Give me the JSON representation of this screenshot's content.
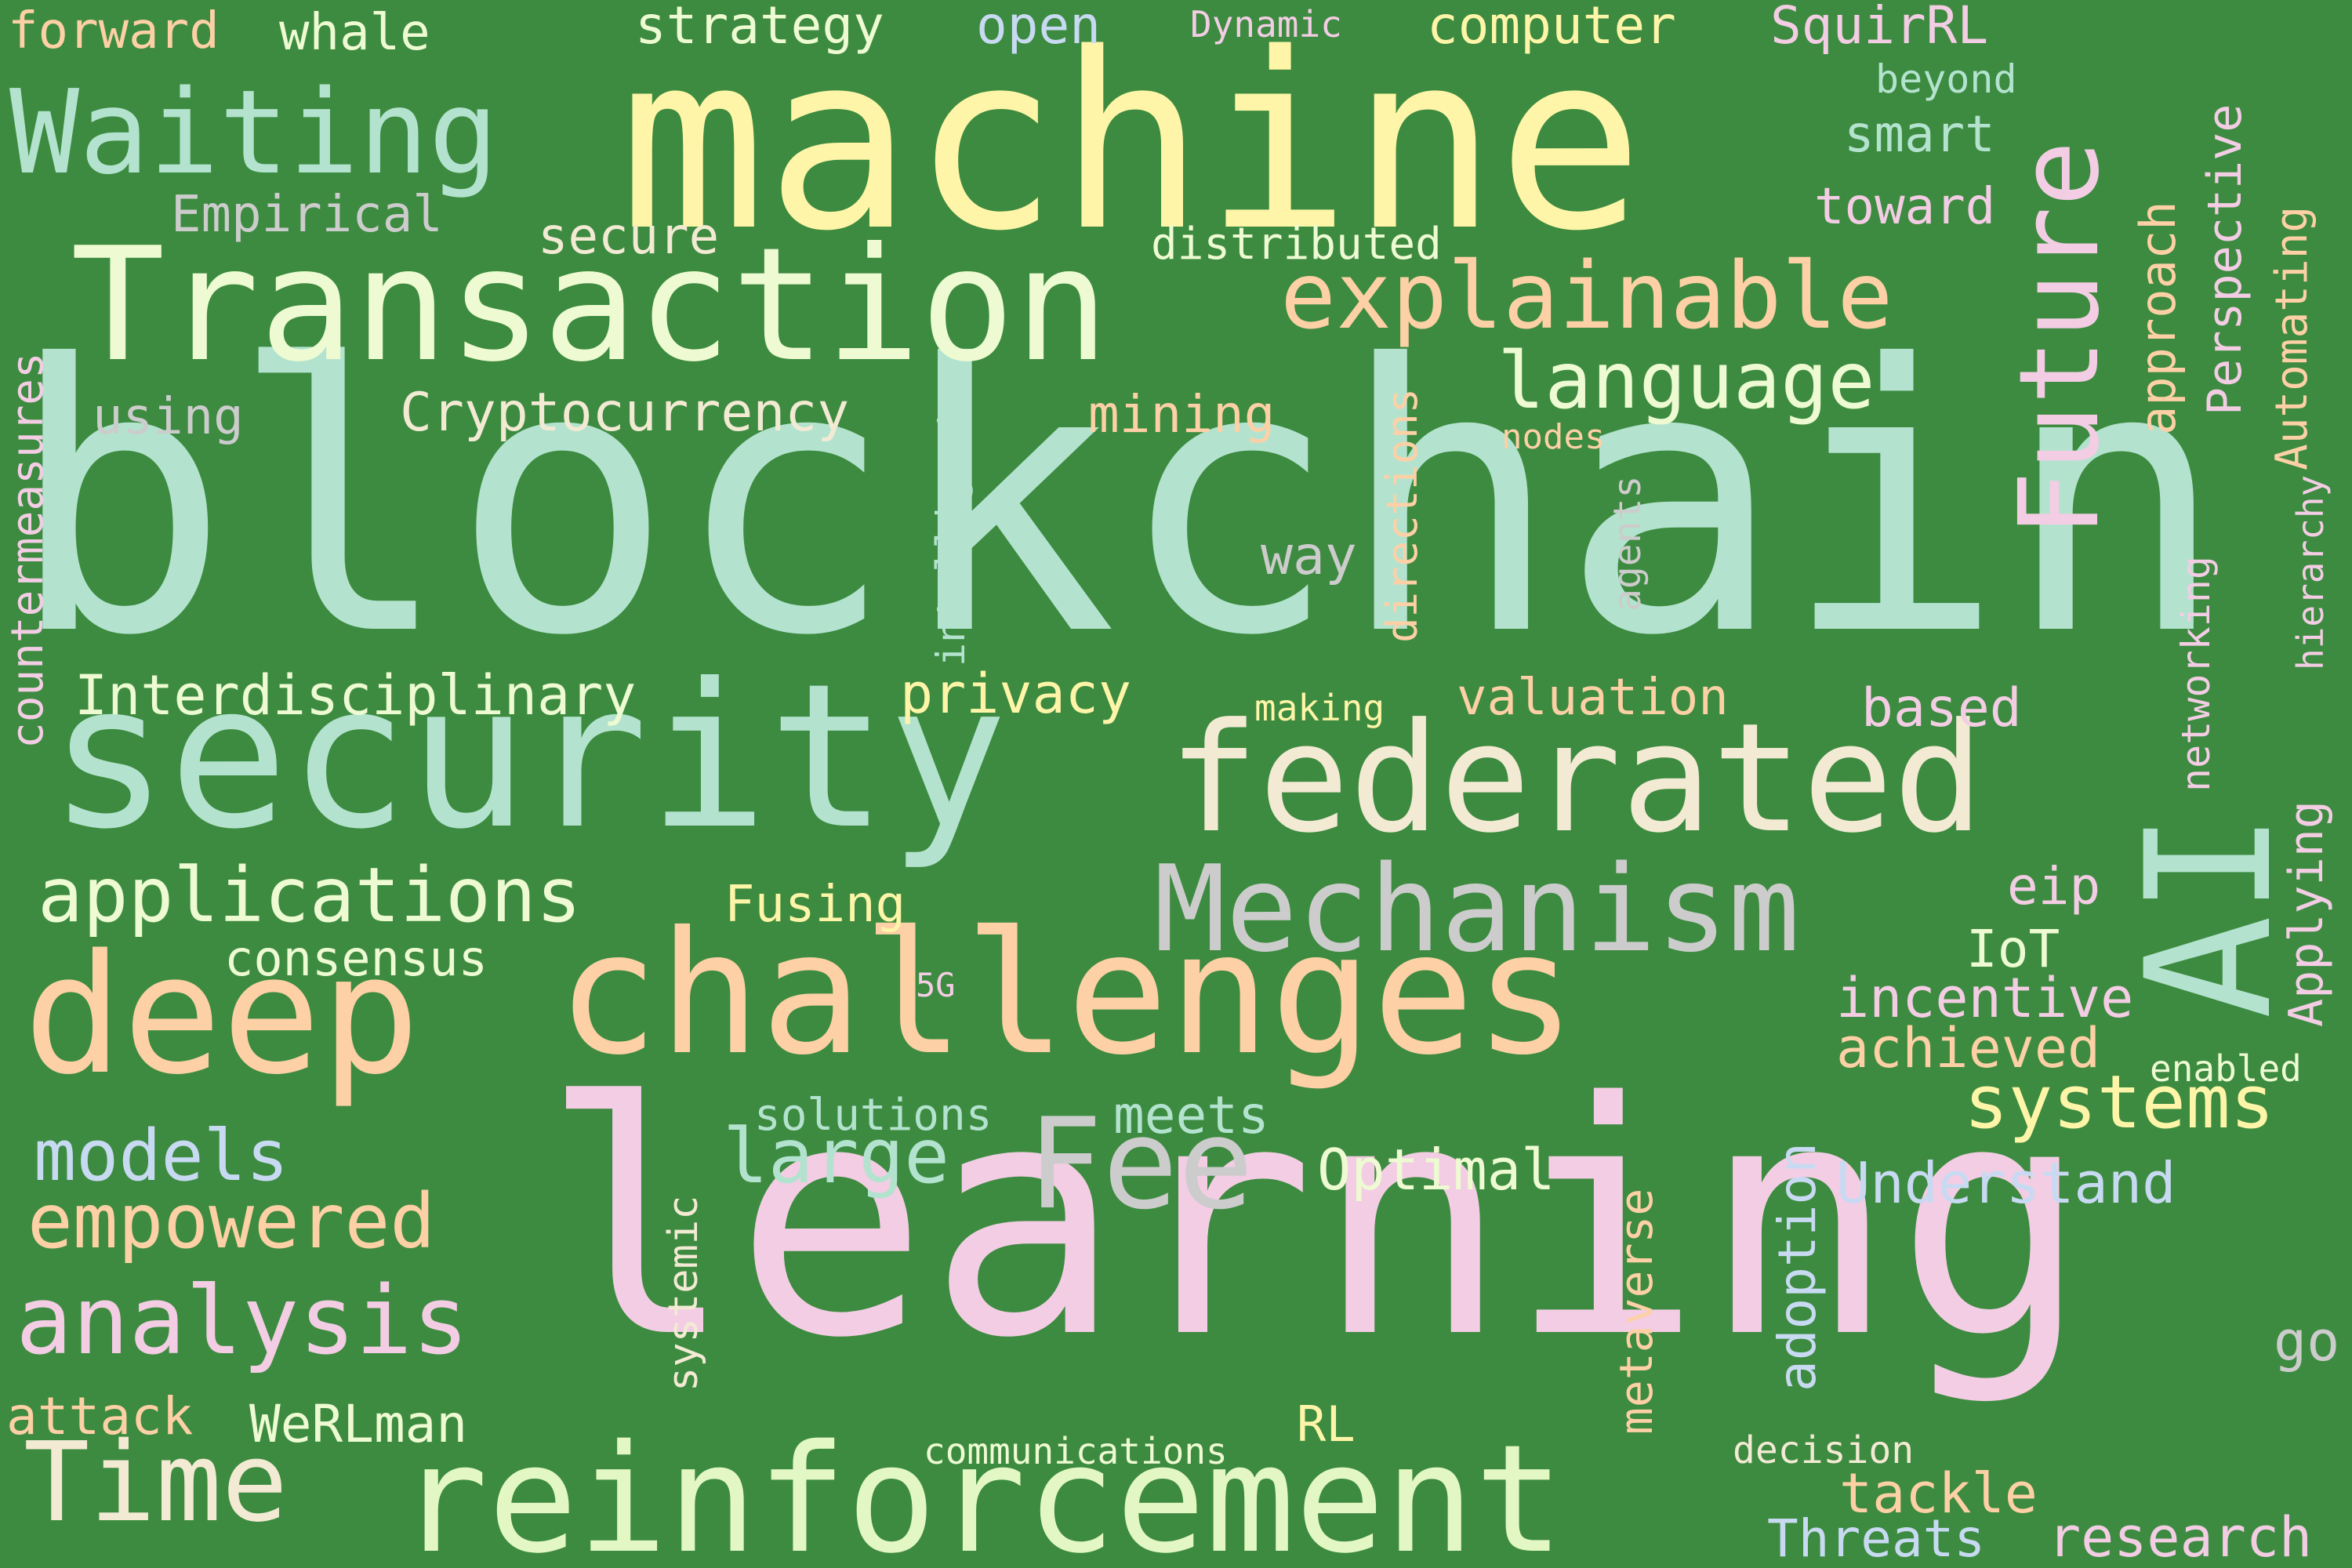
{
  "words": [
    {
      "id": "blockchain",
      "text": "blockchain",
      "color": "#b3e3cf"
    },
    {
      "id": "learning",
      "text": "learning",
      "color": "#f3cde4"
    },
    {
      "id": "machine",
      "text": "machine",
      "color": "#fef5a8"
    },
    {
      "id": "transaction",
      "text": "Transaction",
      "color": "#eefbd2"
    },
    {
      "id": "security",
      "text": "security",
      "color": "#b3e3cf"
    },
    {
      "id": "federated",
      "text": "federated",
      "color": "#f3ead4"
    },
    {
      "id": "challenges",
      "text": "challenges",
      "color": "#fdd0a6"
    },
    {
      "id": "deep",
      "text": "deep",
      "color": "#fdd0a6"
    },
    {
      "id": "reinforcement",
      "text": "reinforcement",
      "color": "#e3f7c5"
    },
    {
      "id": "ai",
      "text": "AI",
      "color": "#b3e3cf"
    },
    {
      "id": "future",
      "text": "Future",
      "color": "#f3cde4"
    },
    {
      "id": "mechanism",
      "text": "Mechanism",
      "color": "#cccccc"
    },
    {
      "id": "fee",
      "text": "Fee",
      "color": "#cccccc"
    },
    {
      "id": "waiting",
      "text": "Waiting",
      "color": "#b3e3cf"
    },
    {
      "id": "explainable",
      "text": "explainable",
      "color": "#fdd0a6"
    },
    {
      "id": "time",
      "text": "Time",
      "color": "#f3ead4"
    },
    {
      "id": "analysis",
      "text": "analysis",
      "color": "#f3cde4"
    },
    {
      "id": "language",
      "text": "language",
      "color": "#eefbd2"
    },
    {
      "id": "applications",
      "text": "applications",
      "color": "#eefbd2"
    },
    {
      "id": "empowered",
      "text": "empowered",
      "color": "#fdd0a6"
    },
    {
      "id": "models",
      "text": "models",
      "color": "#c8daf2"
    },
    {
      "id": "systems",
      "text": "systems",
      "color": "#fef5a8"
    },
    {
      "id": "large",
      "text": "large",
      "color": "#b3e3cf"
    },
    {
      "id": "interdisciplinary",
      "text": "Interdisciplinary",
      "color": "#eefbd2"
    },
    {
      "id": "cryptocurrency",
      "text": "Cryptocurrency",
      "color": "#f3ead4"
    },
    {
      "id": "optimal",
      "text": "Optimal",
      "color": "#eefbd2"
    },
    {
      "id": "understand",
      "text": "Understand",
      "color": "#c8daf2"
    },
    {
      "id": "incentive",
      "text": "incentive",
      "color": "#f3cde4"
    },
    {
      "id": "achieved",
      "text": "achieved",
      "color": "#fdd0a6"
    },
    {
      "id": "strategy",
      "text": "strategy",
      "color": "#eefbd2"
    },
    {
      "id": "computer",
      "text": "computer",
      "color": "#fef5a8"
    },
    {
      "id": "squirrl",
      "text": "SquirRL",
      "color": "#f3cde4"
    },
    {
      "id": "open",
      "text": "open",
      "color": "#c8daf2"
    },
    {
      "id": "dynamic",
      "text": "Dynamic",
      "color": "#f3cde4"
    },
    {
      "id": "whale",
      "text": "whale",
      "color": "#eefbd2"
    },
    {
      "id": "forward",
      "text": "forward",
      "color": "#fdd0a6"
    },
    {
      "id": "beyond",
      "text": "beyond",
      "color": "#b3e3cf"
    },
    {
      "id": "smart",
      "text": "smart",
      "color": "#b3e3cf"
    },
    {
      "id": "toward",
      "text": "toward",
      "color": "#f3cde4"
    },
    {
      "id": "empirical",
      "text": "Empirical",
      "color": "#cccccc"
    },
    {
      "id": "secure",
      "text": "secure",
      "color": "#f3ead4"
    },
    {
      "id": "distributed",
      "text": "distributed",
      "color": "#eefbd2"
    },
    {
      "id": "using",
      "text": "using",
      "color": "#cccccc"
    },
    {
      "id": "mining",
      "text": "mining",
      "color": "#fdd0a6"
    },
    {
      "id": "nodes",
      "text": "nodes",
      "color": "#fdd0a6"
    },
    {
      "id": "way",
      "text": "way",
      "color": "#cccccc"
    },
    {
      "id": "privacy",
      "text": "privacy",
      "color": "#fef5a8"
    },
    {
      "id": "making",
      "text": "making",
      "color": "#fef5a8"
    },
    {
      "id": "valuation",
      "text": "valuation",
      "color": "#fdd0a6"
    },
    {
      "id": "based",
      "text": "based",
      "color": "#f3cde4"
    },
    {
      "id": "fusing",
      "text": "Fusing",
      "color": "#fef5a8"
    },
    {
      "id": "consensus",
      "text": "consensus",
      "color": "#eefbd2"
    },
    {
      "id": "5g",
      "text": "5G",
      "color": "#f3cde4"
    },
    {
      "id": "eip",
      "text": "eip",
      "color": "#f3cde4"
    },
    {
      "id": "iot",
      "text": "IoT",
      "color": "#eefbd2"
    },
    {
      "id": "enabled",
      "text": "enabled",
      "color": "#eefbd2"
    },
    {
      "id": "solutions",
      "text": "solutions",
      "color": "#b3e3cf"
    },
    {
      "id": "meets",
      "text": "meets",
      "color": "#b3e3cf"
    },
    {
      "id": "attack",
      "text": "attack",
      "color": "#fdd0a6"
    },
    {
      "id": "werlman",
      "text": "WeRLman",
      "color": "#eefbd2"
    },
    {
      "id": "rl",
      "text": "RL",
      "color": "#fef5a8"
    },
    {
      "id": "communications",
      "text": "communications",
      "color": "#eefbd2"
    },
    {
      "id": "decision",
      "text": "decision",
      "color": "#f3ead4"
    },
    {
      "id": "tackle",
      "text": "tackle",
      "color": "#fdd0a6"
    },
    {
      "id": "threats",
      "text": "Threats",
      "color": "#c8daf2"
    },
    {
      "id": "research",
      "text": "research",
      "color": "#f3cde4"
    },
    {
      "id": "go",
      "text": "go",
      "color": "#cccccc"
    },
    {
      "id": "countermeasures",
      "text": "countermeasures",
      "color": "#f3cde4"
    },
    {
      "id": "intelligent",
      "text": "intelligent",
      "color": "#b3e3cf"
    },
    {
      "id": "directions",
      "text": "directions",
      "color": "#fdd0a6"
    },
    {
      "id": "agents",
      "text": "agents",
      "color": "#cccccc"
    },
    {
      "id": "approach",
      "text": "approach",
      "color": "#fdd0a6"
    },
    {
      "id": "perspective",
      "text": "Perspective",
      "color": "#f3cde4"
    },
    {
      "id": "automating",
      "text": "Automating",
      "color": "#fdd0a6"
    },
    {
      "id": "hierarchy",
      "text": "hierarchy",
      "color": "#f3cde4"
    },
    {
      "id": "networking",
      "text": "networking",
      "color": "#f3cde4"
    },
    {
      "id": "applying",
      "text": "Applying",
      "color": "#f3cde4"
    },
    {
      "id": "systemic",
      "text": "systemic",
      "color": "#f3ead4"
    },
    {
      "id": "metaverse",
      "text": "metaverse",
      "color": "#fdd0a6"
    },
    {
      "id": "adoption",
      "text": "adoption",
      "color": "#c8daf2"
    }
  ]
}
